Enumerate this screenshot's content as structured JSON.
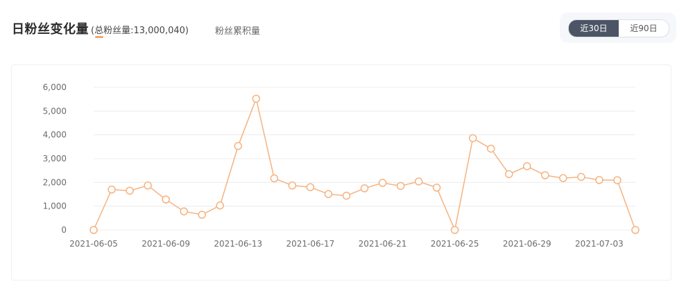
{
  "header": {
    "title": "日粉丝变化量",
    "total": "(总粉丝量:13,000,040)",
    "cumulative_tab": "粉丝累积量",
    "range_options": [
      {
        "label": "近30日",
        "active": true
      },
      {
        "label": "近90日",
        "active": false
      }
    ]
  },
  "colors": {
    "line": "#f5b27f",
    "point_fill": "#ffffff",
    "grid": "#ececec",
    "axis_text": "#6b6b6b",
    "active_tab_bg": "#4c5565"
  },
  "chart_data": {
    "type": "line",
    "x": [
      "2021-06-05",
      "2021-06-06",
      "2021-06-07",
      "2021-06-08",
      "2021-06-09",
      "2021-06-10",
      "2021-06-11",
      "2021-06-12",
      "2021-06-13",
      "2021-06-14",
      "2021-06-15",
      "2021-06-16",
      "2021-06-17",
      "2021-06-18",
      "2021-06-19",
      "2021-06-20",
      "2021-06-21",
      "2021-06-22",
      "2021-06-23",
      "2021-06-24",
      "2021-06-25",
      "2021-06-26",
      "2021-06-27",
      "2021-06-28",
      "2021-06-29",
      "2021-06-30",
      "2021-07-01",
      "2021-07-02",
      "2021-07-03",
      "2021-07-04",
      "2021-07-05"
    ],
    "series": [
      {
        "values": [
          0,
          1700,
          1650,
          1870,
          1280,
          780,
          640,
          1030,
          3530,
          5520,
          2170,
          1870,
          1800,
          1510,
          1440,
          1750,
          1980,
          1850,
          2040,
          1780,
          0,
          3860,
          3420,
          2350,
          2680,
          2300,
          2180,
          2230,
          2100,
          2090,
          0
        ]
      }
    ],
    "xticks": [
      "2021-06-05",
      "2021-06-09",
      "2021-06-13",
      "2021-06-17",
      "2021-06-21",
      "2021-06-25",
      "2021-06-29",
      "2021-07-03"
    ],
    "yticks": [
      "0",
      "1,000",
      "2,000",
      "3,000",
      "4,000",
      "5,000",
      "6,000"
    ],
    "ylim": [
      0,
      6000
    ],
    "grid": true,
    "legend": "none"
  }
}
